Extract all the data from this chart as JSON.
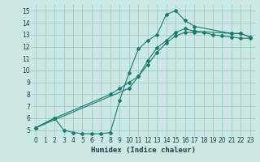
{
  "title": "",
  "xlabel": "Humidex (Indice chaleur)",
  "bg_color": "#cce8e5",
  "grid_color": "#99ccca",
  "line_color": "#1a7a6e",
  "xlim": [
    -0.5,
    23.5
  ],
  "ylim": [
    4.5,
    15.5
  ],
  "xticks": [
    0,
    1,
    2,
    3,
    4,
    5,
    6,
    7,
    8,
    9,
    10,
    11,
    12,
    13,
    14,
    15,
    16,
    17,
    18,
    19,
    20,
    21,
    22,
    23
  ],
  "yticks": [
    5,
    6,
    7,
    8,
    9,
    10,
    11,
    12,
    13,
    14,
    15
  ],
  "curve1_x": [
    0,
    2,
    3,
    4,
    5,
    6,
    7,
    8,
    9,
    10,
    11,
    12,
    13,
    14,
    15,
    16,
    17,
    21,
    22,
    23
  ],
  "curve1_y": [
    5.2,
    6.0,
    5.0,
    4.8,
    4.7,
    4.7,
    4.7,
    4.8,
    7.5,
    9.8,
    11.8,
    12.5,
    13.0,
    14.7,
    15.0,
    14.2,
    13.7,
    13.1,
    13.1,
    12.8
  ],
  "curve2_x": [
    0,
    2,
    8,
    9,
    10,
    11,
    12,
    13,
    14,
    15,
    16,
    17,
    21,
    22,
    23
  ],
  "curve2_y": [
    5.2,
    6.0,
    8.0,
    8.5,
    9.0,
    9.5,
    10.8,
    11.9,
    12.5,
    13.2,
    13.5,
    13.3,
    13.1,
    13.1,
    12.8
  ],
  "curve3_x": [
    0,
    10,
    11,
    12,
    13,
    14,
    15,
    16,
    17,
    18,
    19,
    20,
    21,
    22,
    23
  ],
  "curve3_y": [
    5.2,
    8.5,
    9.5,
    10.5,
    11.5,
    12.3,
    12.9,
    13.2,
    13.2,
    13.2,
    13.0,
    12.9,
    12.8,
    12.7,
    12.7
  ]
}
